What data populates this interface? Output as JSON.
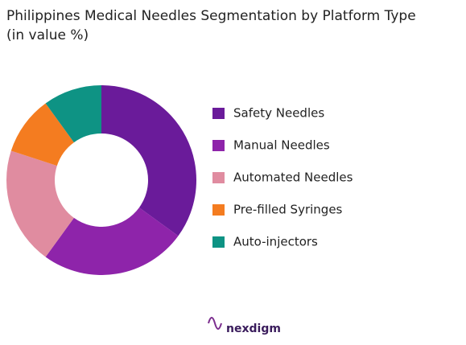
{
  "chart_data": {
    "type": "donut",
    "title": "Philippines Medical Needles Segmentation by Platform Type",
    "subtitle": "(in value %)",
    "categories": [
      "Safety Needles",
      "Manual Needles",
      "Automated Needles",
      "Pre-filled Syringes",
      "Auto-injectors"
    ],
    "values": [
      35,
      25,
      20,
      10,
      10
    ],
    "colors": [
      "#6a1b9a",
      "#8e24aa",
      "#e08ca0",
      "#f47c20",
      "#0e9384"
    ],
    "legend": "right",
    "logo": "nexdigm"
  }
}
